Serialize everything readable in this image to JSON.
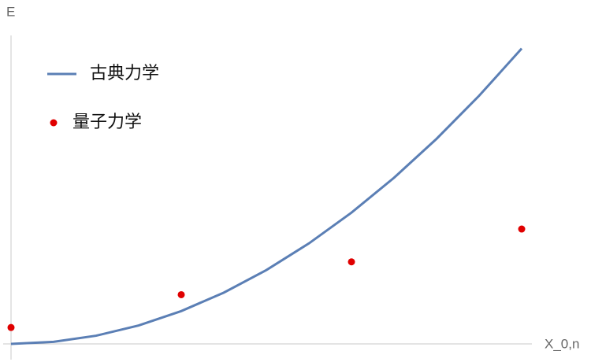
{
  "chart_data": {
    "type": "line",
    "x_label": "X_0,n",
    "y_label": "E",
    "xlim": [
      0,
      3.06
    ],
    "ylim": [
      0,
      9.4
    ],
    "legend": "upper left",
    "series": [
      {
        "name": "古典力学",
        "type": "line",
        "color": "#5b7fb5",
        "x": [
          0,
          0.25,
          0.5,
          0.75,
          1,
          1.25,
          1.5,
          1.75,
          2,
          2.25,
          2.5,
          2.75,
          3
        ],
        "values": [
          0,
          0.0625,
          0.25,
          0.5625,
          1,
          1.5625,
          2.25,
          3.0625,
          4,
          5.0625,
          6.25,
          7.5625,
          9
        ]
      },
      {
        "name": "量子力学",
        "type": "scatter",
        "color": "#e00000",
        "x": [
          0,
          1,
          2,
          3
        ],
        "values": [
          0.5,
          1.5,
          2.5,
          3.5
        ]
      }
    ]
  }
}
